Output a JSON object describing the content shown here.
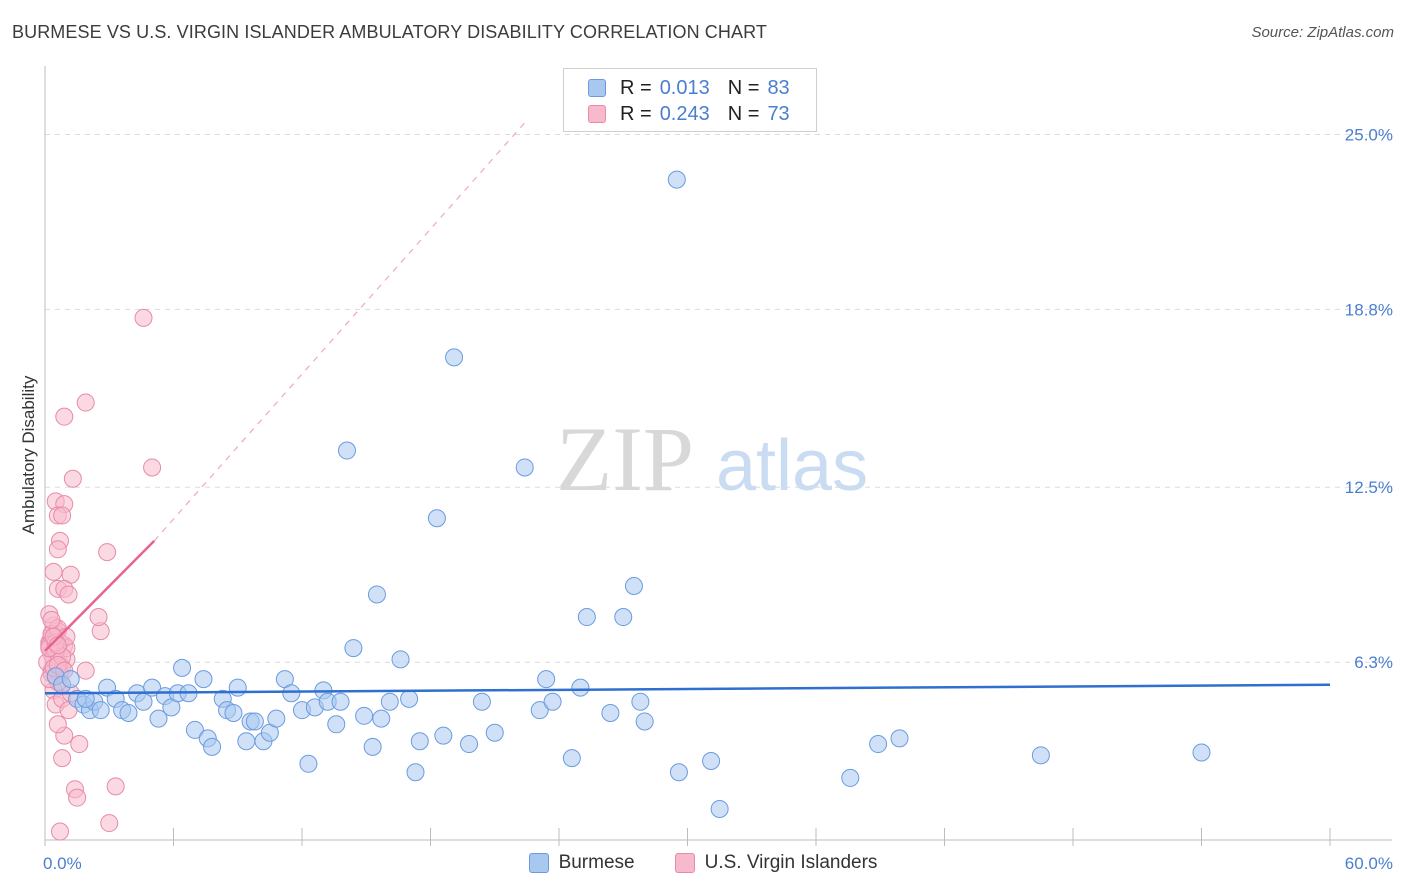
{
  "header": {
    "title": "BURMESE VS U.S. VIRGIN ISLANDER AMBULATORY DISABILITY CORRELATION CHART",
    "source": "Source: ZipAtlas.com"
  },
  "watermark": {
    "zip": "ZIP",
    "atlas": "atlas"
  },
  "legend": {
    "items": [
      {
        "r_label": "R = ",
        "r_value": "0.013",
        "n_label": "N = ",
        "n_value": "83",
        "color": "#a9c8f0",
        "border": "#6a9be0"
      },
      {
        "r_label": "R = ",
        "r_value": "0.243",
        "n_label": "N = ",
        "n_value": "73",
        "color": "#f7b9cc",
        "border": "#e88aa8"
      }
    ]
  },
  "chart_data": {
    "type": "scatter",
    "title": "BURMESE VS U.S. VIRGIN ISLANDER AMBULATORY DISABILITY CORRELATION CHART",
    "xlabel": "",
    "ylabel": "Ambulatory Disability",
    "xlim": [
      0,
      60
    ],
    "ylim": [
      0,
      27
    ],
    "x_tick_labels": [
      "0.0%",
      "60.0%"
    ],
    "y_ticks": [
      6.3,
      12.5,
      18.8,
      25.0
    ],
    "y_tick_labels": [
      "6.3%",
      "12.5%",
      "18.8%",
      "25.0%"
    ],
    "grid": true,
    "series": [
      {
        "name": "Burmese",
        "color": "#a9c8f0",
        "edge": "#6a9be0",
        "trend": {
          "x": [
            0,
            60
          ],
          "y": [
            5.2,
            5.5
          ],
          "color": "#2f6fd0"
        },
        "points": [
          [
            0.5,
            5.8
          ],
          [
            0.8,
            5.5
          ],
          [
            1.2,
            5.7
          ],
          [
            1.5,
            5.0
          ],
          [
            1.8,
            4.8
          ],
          [
            2.1,
            4.6
          ],
          [
            2.3,
            4.9
          ],
          [
            2.6,
            4.6
          ],
          [
            2.9,
            5.4
          ],
          [
            3.3,
            5.0
          ],
          [
            3.6,
            4.6
          ],
          [
            3.9,
            4.5
          ],
          [
            4.3,
            5.2
          ],
          [
            4.6,
            4.9
          ],
          [
            5.0,
            5.4
          ],
          [
            5.3,
            4.3
          ],
          [
            5.6,
            5.1
          ],
          [
            5.9,
            4.7
          ],
          [
            6.2,
            5.2
          ],
          [
            6.4,
            6.1
          ],
          [
            6.7,
            5.2
          ],
          [
            7.0,
            3.9
          ],
          [
            7.4,
            5.7
          ],
          [
            7.6,
            3.6
          ],
          [
            7.8,
            3.3
          ],
          [
            8.3,
            5.0
          ],
          [
            8.5,
            4.6
          ],
          [
            8.8,
            4.5
          ],
          [
            9.0,
            5.4
          ],
          [
            9.4,
            3.5
          ],
          [
            9.6,
            4.2
          ],
          [
            9.8,
            4.2
          ],
          [
            10.2,
            3.5
          ],
          [
            10.5,
            3.8
          ],
          [
            10.8,
            4.3
          ],
          [
            11.2,
            5.7
          ],
          [
            11.5,
            5.2
          ],
          [
            12.0,
            4.6
          ],
          [
            12.3,
            2.7
          ],
          [
            12.6,
            4.7
          ],
          [
            13.0,
            5.3
          ],
          [
            13.2,
            4.9
          ],
          [
            13.6,
            4.1
          ],
          [
            13.8,
            4.9
          ],
          [
            14.1,
            13.8
          ],
          [
            14.4,
            6.8
          ],
          [
            14.9,
            4.4
          ],
          [
            15.3,
            3.3
          ],
          [
            15.5,
            8.7
          ],
          [
            15.7,
            4.3
          ],
          [
            16.1,
            4.9
          ],
          [
            16.6,
            6.4
          ],
          [
            17.0,
            5.0
          ],
          [
            17.3,
            2.4
          ],
          [
            17.5,
            3.5
          ],
          [
            18.3,
            11.4
          ],
          [
            18.6,
            3.7
          ],
          [
            19.1,
            17.1
          ],
          [
            19.8,
            3.4
          ],
          [
            20.4,
            4.9
          ],
          [
            21.0,
            3.8
          ],
          [
            22.4,
            13.2
          ],
          [
            23.1,
            4.6
          ],
          [
            23.4,
            5.7
          ],
          [
            23.7,
            4.9
          ],
          [
            24.6,
            2.9
          ],
          [
            25.0,
            5.4
          ],
          [
            25.3,
            7.9
          ],
          [
            26.4,
            4.5
          ],
          [
            27.0,
            7.9
          ],
          [
            27.5,
            9.0
          ],
          [
            27.8,
            4.9
          ],
          [
            28.0,
            4.2
          ],
          [
            29.5,
            23.4
          ],
          [
            29.6,
            2.4
          ],
          [
            31.1,
            2.8
          ],
          [
            31.5,
            1.1
          ],
          [
            37.6,
            2.2
          ],
          [
            38.9,
            3.4
          ],
          [
            39.9,
            3.6
          ],
          [
            46.5,
            3.0
          ],
          [
            54.0,
            3.1
          ],
          [
            1.9,
            5.0
          ]
        ]
      },
      {
        "name": "U.S. Virgin Islanders",
        "color": "#f7b9cc",
        "edge": "#e88aa8",
        "trend": {
          "x": [
            0,
            5.1
          ],
          "y": [
            6.7,
            10.6
          ],
          "color": "#e8638f",
          "dash_to": [
            22.5,
            25.5
          ]
        },
        "points": [
          [
            0.2,
            7.0
          ],
          [
            0.3,
            7.2
          ],
          [
            0.4,
            6.8
          ],
          [
            0.5,
            7.3
          ],
          [
            0.6,
            6.5
          ],
          [
            0.3,
            6.0
          ],
          [
            0.5,
            5.8
          ],
          [
            0.7,
            6.2
          ],
          [
            0.8,
            5.5
          ],
          [
            0.4,
            7.6
          ],
          [
            0.2,
            8.0
          ],
          [
            0.6,
            7.4
          ],
          [
            0.9,
            6.9
          ],
          [
            1.0,
            6.4
          ],
          [
            0.3,
            6.6
          ],
          [
            0.5,
            7.1
          ],
          [
            0.7,
            7.0
          ],
          [
            0.4,
            5.3
          ],
          [
            0.6,
            5.6
          ],
          [
            0.8,
            6.1
          ],
          [
            0.5,
            12.0
          ],
          [
            0.9,
            11.9
          ],
          [
            0.6,
            11.5
          ],
          [
            0.8,
            11.5
          ],
          [
            0.7,
            10.6
          ],
          [
            0.6,
            10.3
          ],
          [
            0.4,
            9.5
          ],
          [
            1.2,
            9.4
          ],
          [
            0.6,
            8.9
          ],
          [
            0.9,
            8.9
          ],
          [
            1.1,
            8.7
          ],
          [
            1.0,
            6.8
          ],
          [
            0.5,
            4.8
          ],
          [
            0.8,
            5.0
          ],
          [
            1.1,
            4.6
          ],
          [
            0.9,
            3.7
          ],
          [
            0.6,
            4.1
          ],
          [
            0.8,
            2.9
          ],
          [
            1.6,
            3.4
          ],
          [
            1.4,
            1.8
          ],
          [
            1.5,
            1.5
          ],
          [
            0.7,
            0.3
          ],
          [
            3.3,
            1.9
          ],
          [
            3.0,
            0.6
          ],
          [
            4.6,
            18.5
          ],
          [
            1.9,
            15.5
          ],
          [
            0.9,
            15.0
          ],
          [
            1.3,
            12.8
          ],
          [
            5.0,
            13.2
          ],
          [
            2.9,
            10.2
          ],
          [
            2.6,
            7.4
          ],
          [
            2.5,
            7.9
          ],
          [
            1.9,
            6.0
          ],
          [
            0.3,
            7.3
          ],
          [
            0.2,
            6.9
          ],
          [
            0.4,
            6.4
          ],
          [
            0.6,
            7.5
          ],
          [
            0.1,
            6.3
          ],
          [
            0.3,
            5.9
          ],
          [
            0.5,
            6.7
          ],
          [
            0.7,
            5.9
          ],
          [
            0.2,
            5.7
          ],
          [
            0.4,
            6.1
          ],
          [
            0.8,
            6.5
          ],
          [
            1.0,
            7.2
          ],
          [
            0.3,
            7.8
          ],
          [
            0.6,
            6.2
          ],
          [
            0.9,
            6.0
          ],
          [
            1.2,
            5.2
          ],
          [
            0.2,
            6.8
          ],
          [
            0.5,
            7.0
          ],
          [
            0.4,
            7.2
          ],
          [
            0.6,
            6.9
          ]
        ]
      }
    ],
    "legend": [
      "Burmese",
      "U.S. Virgin Islanders"
    ]
  }
}
